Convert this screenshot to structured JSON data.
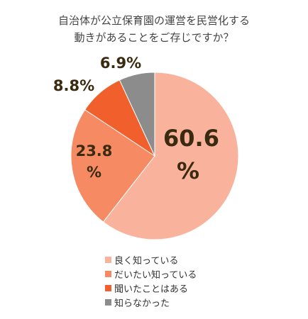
{
  "chart_data": {
    "type": "pie",
    "title": [
      "自治体が公立保育園の運営を民営化する",
      "動きがあることをご存じですか？"
    ],
    "categories": [
      "良く知っている",
      "だいたい知っている",
      "聞いたことはある",
      "知らなかった"
    ],
    "values": [
      60.6,
      23.8,
      8.8,
      6.9
    ],
    "value_labels": [
      "60.6 %",
      "23.8 %",
      "8.8%",
      "6.9%"
    ],
    "colors": [
      "#f9b39d",
      "#f58a63",
      "#f1602c",
      "#8c8c8c"
    ],
    "legend": "bottom"
  }
}
